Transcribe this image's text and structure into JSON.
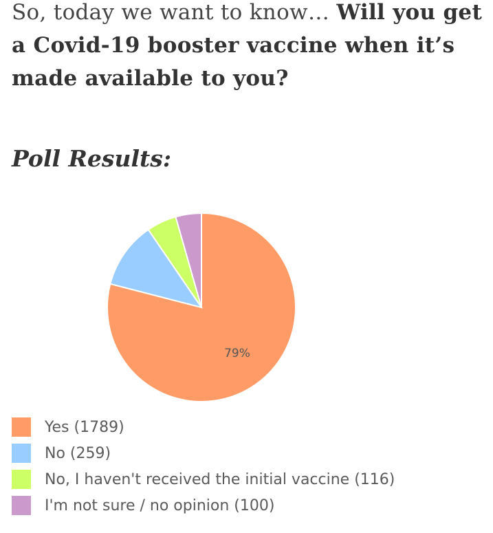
{
  "intro": {
    "lead": "So, today we want to know… ",
    "question": "Will you get a Covid-19 booster vaccine when it’s made available to you?"
  },
  "poll": {
    "heading": "Poll Results:"
  },
  "chart_data": {
    "type": "pie",
    "title": "",
    "categories": [
      "Yes (1789)",
      "No (259)",
      "No, I haven't received the initial vaccine (116)",
      "I'm not sure / no opinion (100)"
    ],
    "values": [
      1789,
      259,
      116,
      100
    ],
    "colors": [
      "#fe9b66",
      "#99ccff",
      "#ccff66",
      "#cc99cc"
    ],
    "data_labels": [
      "79%",
      "",
      "",
      ""
    ],
    "legend": "bottom"
  }
}
